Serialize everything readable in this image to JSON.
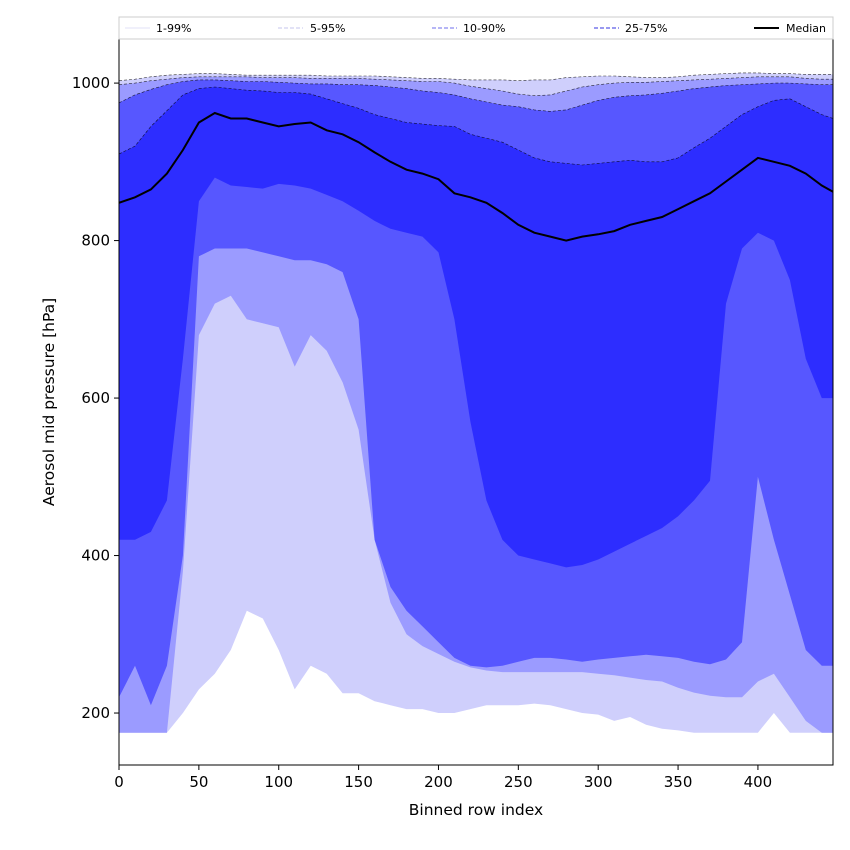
{
  "chart_data": {
    "type": "area",
    "xlabel": "Binned row index",
    "ylabel": "Aerosol mid pressure [hPa]",
    "xlim": [
      0,
      447
    ],
    "ylim": [
      134,
      1056
    ],
    "x_ticks": [
      0,
      50,
      100,
      150,
      200,
      250,
      300,
      350,
      400
    ],
    "y_ticks": [
      200,
      400,
      600,
      800,
      1000
    ],
    "grid": false,
    "legend_position": "top, above plot",
    "legend": [
      {
        "label": "1-99%",
        "style": "solid thin",
        "color": "#d7d7f5"
      },
      {
        "label": "5-95%",
        "style": "dashed thin",
        "color": "#b4b4e8"
      },
      {
        "label": "10-90%",
        "style": "dashed",
        "color": "#8a8af0"
      },
      {
        "label": "25-75%",
        "style": "dashed",
        "color": "#5c5ce8"
      },
      {
        "label": "Median",
        "style": "solid thick",
        "color": "#000000"
      }
    ],
    "x": [
      0,
      10,
      20,
      30,
      40,
      50,
      60,
      70,
      80,
      90,
      100,
      110,
      120,
      130,
      140,
      150,
      160,
      170,
      180,
      190,
      200,
      210,
      220,
      230,
      240,
      250,
      260,
      270,
      280,
      290,
      300,
      310,
      320,
      330,
      340,
      350,
      360,
      370,
      380,
      390,
      400,
      410,
      420,
      430,
      440,
      447
    ],
    "series": [
      {
        "name": "1-99%",
        "color": "#cfcffc",
        "lower": [
          175,
          175,
          175,
          175,
          200,
          230,
          250,
          280,
          330,
          320,
          280,
          230,
          260,
          250,
          225,
          225,
          215,
          210,
          205,
          205,
          200,
          200,
          205,
          210,
          210,
          210,
          212,
          210,
          205,
          200,
          198,
          190,
          195,
          185,
          180,
          178,
          175,
          175,
          175,
          175,
          175,
          200,
          175,
          175,
          175,
          175
        ],
        "upper": [
          1003,
          1005,
          1008,
          1010,
          1011,
          1012,
          1012,
          1011,
          1010,
          1010,
          1010,
          1010,
          1010,
          1009,
          1009,
          1009,
          1009,
          1008,
          1007,
          1006,
          1006,
          1005,
          1004,
          1004,
          1004,
          1003,
          1004,
          1004,
          1007,
          1008,
          1009,
          1009,
          1008,
          1007,
          1007,
          1008,
          1010,
          1011,
          1012,
          1013,
          1013,
          1012,
          1012,
          1011,
          1011,
          1011
        ]
      },
      {
        "name": "5-95%",
        "color": "#9b9bff",
        "lower": [
          175,
          175,
          175,
          175,
          380,
          680,
          720,
          730,
          700,
          695,
          690,
          640,
          680,
          660,
          620,
          560,
          420,
          340,
          300,
          285,
          275,
          265,
          258,
          254,
          252,
          252,
          252,
          252,
          252,
          252,
          250,
          248,
          245,
          242,
          240,
          232,
          226,
          222,
          220,
          220,
          240,
          250,
          220,
          190,
          175,
          175
        ],
        "upper": [
          998,
          1000,
          1003,
          1005,
          1007,
          1008,
          1008,
          1008,
          1008,
          1007,
          1007,
          1007,
          1006,
          1006,
          1006,
          1006,
          1005,
          1004,
          1003,
          1002,
          1002,
          1000,
          996,
          993,
          990,
          986,
          984,
          985,
          990,
          995,
          998,
          1000,
          1001,
          1001,
          1002,
          1003,
          1004,
          1005,
          1006,
          1007,
          1008,
          1008,
          1008,
          1006,
          1005,
          1005
        ]
      },
      {
        "name": "10-90%",
        "color": "#5757ff",
        "lower": [
          220,
          260,
          210,
          260,
          400,
          780,
          790,
          790,
          790,
          785,
          780,
          775,
          775,
          770,
          760,
          700,
          420,
          360,
          330,
          310,
          290,
          270,
          260,
          258,
          260,
          265,
          270,
          270,
          268,
          265,
          268,
          270,
          272,
          274,
          272,
          270,
          265,
          262,
          268,
          290,
          500,
          420,
          350,
          280,
          260,
          260
        ],
        "upper": [
          975,
          985,
          992,
          998,
          1002,
          1004,
          1004,
          1003,
          1002,
          1002,
          1001,
          1000,
          999,
          999,
          998,
          998,
          997,
          995,
          993,
          990,
          988,
          985,
          980,
          976,
          972,
          970,
          966,
          964,
          966,
          972,
          978,
          982,
          984,
          985,
          987,
          990,
          993,
          995,
          997,
          998,
          999,
          1000,
          1000,
          999,
          998,
          998
        ]
      },
      {
        "name": "25-75%",
        "color": "#2d2dff",
        "lower": [
          420,
          420,
          430,
          470,
          650,
          850,
          880,
          870,
          868,
          866,
          872,
          870,
          866,
          858,
          850,
          838,
          825,
          815,
          810,
          805,
          785,
          700,
          570,
          470,
          420,
          400,
          395,
          390,
          385,
          388,
          395,
          405,
          415,
          425,
          435,
          450,
          470,
          495,
          720,
          790,
          810,
          800,
          750,
          650,
          600,
          600
        ],
        "upper": [
          910,
          920,
          945,
          965,
          985,
          993,
          995,
          993,
          991,
          990,
          988,
          988,
          986,
          980,
          974,
          968,
          960,
          955,
          950,
          948,
          946,
          945,
          935,
          930,
          925,
          915,
          905,
          900,
          898,
          896,
          898,
          900,
          902,
          900,
          900,
          905,
          918,
          930,
          945,
          960,
          970,
          978,
          980,
          970,
          960,
          955
        ]
      },
      {
        "name": "Median",
        "color": "#000000",
        "values": [
          848,
          855,
          865,
          885,
          915,
          950,
          962,
          955,
          955,
          950,
          945,
          948,
          950,
          940,
          935,
          925,
          912,
          900,
          890,
          885,
          878,
          860,
          855,
          848,
          835,
          820,
          810,
          805,
          800,
          805,
          808,
          812,
          820,
          825,
          830,
          840,
          850,
          860,
          875,
          890,
          905,
          900,
          895,
          885,
          870,
          862
        ]
      }
    ]
  }
}
